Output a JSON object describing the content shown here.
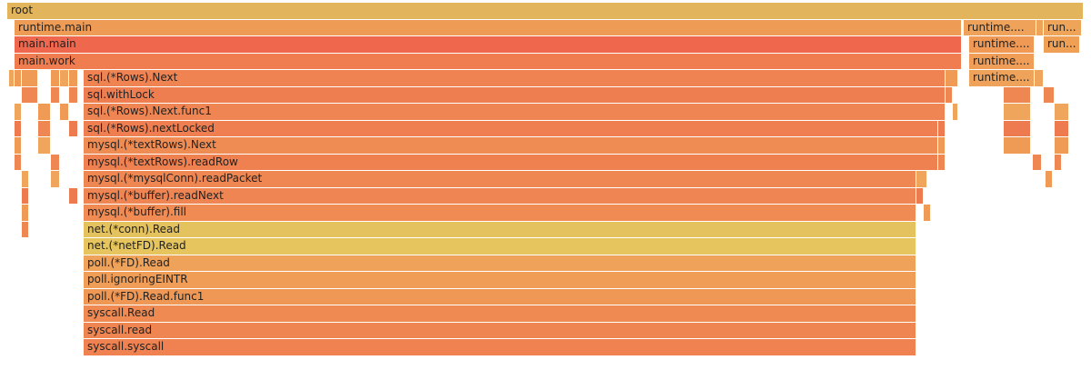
{
  "frames": [
    {
      "label": "root"
    },
    {
      "label": "runtime.main"
    },
    {
      "label": "runtime...."
    },
    {
      "label": "run..."
    },
    {
      "label": "main.main"
    },
    {
      "label": "runtime...."
    },
    {
      "label": "run..."
    },
    {
      "label": "main.work"
    },
    {
      "label": "runtime...."
    },
    {
      "label": "sql.(*Rows).Next"
    },
    {
      "label": "runtime...."
    },
    {
      "label": "sql.withLock"
    },
    {
      "label": "sql.(*Rows).Next.func1"
    },
    {
      "label": "sql.(*Rows).nextLocked"
    },
    {
      "label": "mysql.(*textRows).Next"
    },
    {
      "label": "mysql.(*textRows).readRow"
    },
    {
      "label": "mysql.(*mysqlConn).readPacket"
    },
    {
      "label": "mysql.(*buffer).readNext"
    },
    {
      "label": "mysql.(*buffer).fill"
    },
    {
      "label": "net.(*conn).Read"
    },
    {
      "label": "net.(*netFD).Read"
    },
    {
      "label": "poll.(*FD).Read"
    },
    {
      "label": "poll.ignoringEINTR"
    },
    {
      "label": "poll.(*FD).Read.func1"
    },
    {
      "label": "syscall.Read"
    },
    {
      "label": "syscall.read"
    },
    {
      "label": "syscall.syscall"
    }
  ]
}
